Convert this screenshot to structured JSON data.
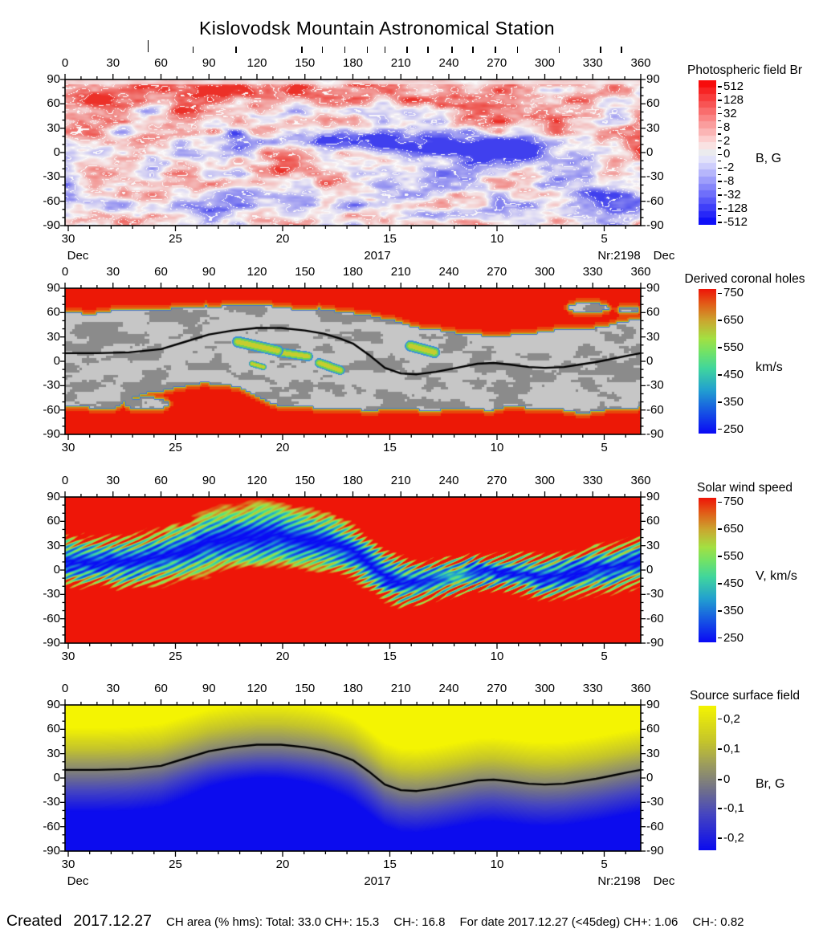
{
  "title": "Kislovodsk Mountain Astronomical Station",
  "axes": {
    "top_labels": [
      "0",
      "30",
      "60",
      "90",
      "120",
      "150",
      "180",
      "210",
      "240",
      "270",
      "300",
      "330",
      "360"
    ],
    "y_labels": [
      "90",
      "60",
      "30",
      "0",
      "-30",
      "-60",
      "-90"
    ],
    "bottom_labels": [
      "30",
      "25",
      "20",
      "15",
      "10",
      "5"
    ],
    "month_left": "Dec",
    "month_right": "Dec",
    "year": "2017",
    "carrington_number": "Nr:2198",
    "date_marks_deg": [
      52,
      80,
      107,
      148,
      161,
      175,
      189,
      200,
      214,
      227,
      242,
      255,
      269,
      283,
      309,
      335,
      348
    ]
  },
  "panels": [
    {
      "id": "photospheric-field",
      "title": "Photospheric field Br",
      "unit": "B, G",
      "colorbar": {
        "type": "stepped-diverging",
        "labels": [
          "512",
          "128",
          "32",
          "8",
          "2",
          "0",
          "-2",
          "-8",
          "-32",
          "-128",
          "-512"
        ],
        "positive_color": "#f70c0c",
        "zero_color": "#e9e9ec",
        "negative_color": "#0e0ef8"
      }
    },
    {
      "id": "derived-coronal-holes",
      "title": "Derived coronal holes",
      "unit": "km/s",
      "colorbar": {
        "type": "gradient",
        "labels": [
          "750",
          "650",
          "550",
          "450",
          "350",
          "250"
        ],
        "stops": [
          "#e81400",
          "#a88428",
          "#78d248",
          "#3cdca0",
          "#1e78dc",
          "#0c0cf8"
        ]
      }
    },
    {
      "id": "solar-wind-speed",
      "title": "Solar wind speed",
      "unit": "V, km/s",
      "colorbar": {
        "type": "gradient",
        "labels": [
          "750",
          "650",
          "550",
          "450",
          "350",
          "250"
        ],
        "stops": [
          "#e81400",
          "#a88428",
          "#78d248",
          "#3cdca0",
          "#1e78dc",
          "#0c0cf8"
        ]
      }
    },
    {
      "id": "source-surface-field",
      "title": "Source surface field",
      "unit": "Br, G",
      "colorbar": {
        "type": "gradient",
        "labels": [
          "0,2",
          "0,1",
          "0",
          "-0,1",
          "-0,2"
        ],
        "stops": [
          "#f4f400",
          "#b4b432",
          "#8c8c78",
          "#4848c8",
          "#0a0af0"
        ]
      }
    }
  ],
  "footer": {
    "created_label": "Created",
    "created_date": "2017.12.27",
    "stats_segments": [
      "CH area (% hms): Total: 33.0 CH+: 15.3",
      "CH-: 16.8",
      "For date 2017.12.27 (<45deg) CH+: 1.06",
      "CH-: 0.82"
    ]
  },
  "chart_data": {
    "type": "heatmap",
    "title": "Kislovodsk Mountain Astronomical Station",
    "carrington_rotation": 2198,
    "created_date": "2017.12.27",
    "x_axis": {
      "top_longitude_deg": [
        0,
        30,
        60,
        90,
        120,
        150,
        180,
        210,
        240,
        270,
        300,
        330,
        360
      ],
      "bottom_days": [
        30,
        25,
        20,
        15,
        10,
        5
      ],
      "bottom_month": "Dec",
      "bottom_year": 2017
    },
    "y_axis_latitude_deg": [
      90,
      60,
      30,
      0,
      -30,
      -60,
      -90
    ],
    "panels": [
      {
        "name": "Photospheric field Br",
        "unit": "B, G",
        "scale_values": [
          512,
          128,
          32,
          8,
          2,
          0,
          -2,
          -8,
          -32,
          -128,
          -512
        ]
      },
      {
        "name": "Derived coronal holes",
        "unit": "km/s",
        "scale_values": [
          750,
          650,
          550,
          450,
          350,
          250
        ]
      },
      {
        "name": "Solar wind speed",
        "unit": "V, km/s",
        "scale_values": [
          750,
          650,
          550,
          450,
          350,
          250
        ]
      },
      {
        "name": "Source surface field",
        "unit": "Br, G",
        "scale_values": [
          0.2,
          0.1,
          0,
          -0.1,
          -0.2
        ]
      }
    ],
    "neutral_line_deg_lat": [
      [
        0,
        10
      ],
      [
        20,
        10
      ],
      [
        40,
        11
      ],
      [
        60,
        15
      ],
      [
        75,
        24
      ],
      [
        90,
        33
      ],
      [
        105,
        38
      ],
      [
        120,
        41
      ],
      [
        135,
        41
      ],
      [
        150,
        38
      ],
      [
        162,
        34
      ],
      [
        172,
        28
      ],
      [
        180,
        22
      ],
      [
        190,
        8
      ],
      [
        200,
        -8
      ],
      [
        210,
        -15
      ],
      [
        220,
        -16
      ],
      [
        232,
        -13
      ],
      [
        245,
        -8
      ],
      [
        258,
        -3
      ],
      [
        268,
        -2
      ],
      [
        278,
        -4
      ],
      [
        290,
        -7
      ],
      [
        300,
        -8
      ],
      [
        312,
        -7
      ],
      [
        322,
        -4
      ],
      [
        332,
        -1
      ],
      [
        342,
        3
      ],
      [
        352,
        7
      ],
      [
        360,
        10
      ]
    ],
    "coronal_hole_boundary": {
      "north": [
        [
          0,
          57
        ],
        [
          20,
          60
        ],
        [
          40,
          63
        ],
        [
          60,
          65
        ],
        [
          80,
          67
        ],
        [
          100,
          68
        ],
        [
          120,
          67
        ],
        [
          140,
          66
        ],
        [
          160,
          62
        ],
        [
          175,
          60
        ],
        [
          190,
          57
        ],
        [
          205,
          50
        ],
        [
          220,
          42
        ],
        [
          235,
          36
        ],
        [
          250,
          33
        ],
        [
          265,
          32
        ],
        [
          280,
          33
        ],
        [
          295,
          35
        ],
        [
          310,
          38
        ],
        [
          325,
          41
        ],
        [
          340,
          44
        ],
        [
          350,
          48
        ],
        [
          360,
          53
        ]
      ],
      "south": [
        [
          0,
          -55
        ],
        [
          20,
          -58
        ],
        [
          32,
          -55
        ],
        [
          40,
          -45
        ],
        [
          50,
          -40
        ],
        [
          60,
          -38
        ],
        [
          70,
          -34
        ],
        [
          80,
          -28
        ],
        [
          90,
          -25
        ],
        [
          100,
          -28
        ],
        [
          110,
          -35
        ],
        [
          120,
          -45
        ],
        [
          130,
          -52
        ],
        [
          145,
          -57
        ],
        [
          165,
          -60
        ],
        [
          190,
          -61
        ],
        [
          220,
          -61
        ],
        [
          250,
          -60
        ],
        [
          280,
          -58
        ],
        [
          310,
          -60
        ],
        [
          335,
          -62
        ],
        [
          360,
          -58
        ]
      ]
    },
    "ch_area_percent": {
      "total": 33.0,
      "ch_plus": 15.3,
      "ch_minus": 16.8
    },
    "for_date": {
      "date": "2017.12.27",
      "window": "<45deg",
      "ch_plus": 1.06,
      "ch_minus": 0.82
    }
  }
}
